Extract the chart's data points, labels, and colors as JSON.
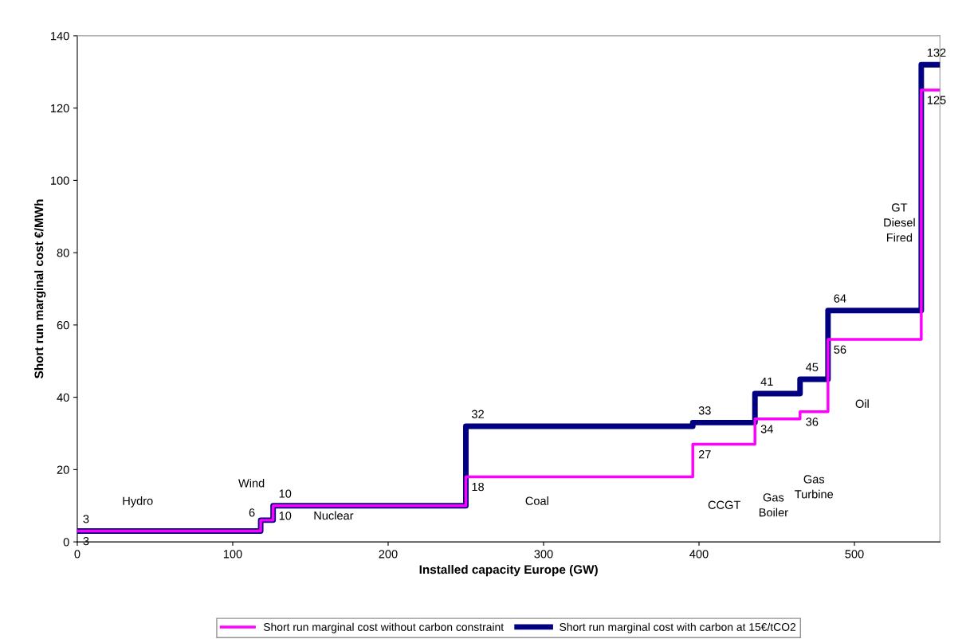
{
  "chart_data": {
    "type": "step",
    "xlabel": "Installed capacity Europe (GW)",
    "ylabel": "Short run marginal cost €/MWh",
    "x": [
      0,
      118,
      126,
      250,
      396,
      436,
      465,
      483,
      543,
      555
    ],
    "series": [
      {
        "name": "Short run marginal cost without carbon constraint",
        "color": "#ff00ff",
        "values": [
          3,
          6,
          10,
          18,
          27,
          34,
          36,
          56,
          125,
          125
        ],
        "value_labels": [
          "3",
          null,
          "10",
          "18",
          "27",
          "34",
          "36",
          "56",
          "125",
          null
        ]
      },
      {
        "name": "Short run marginal cost with carbon at 15€/tCO2",
        "color": "#000080",
        "values": [
          3,
          6,
          10,
          32,
          33,
          41,
          45,
          64,
          132,
          132
        ],
        "value_labels": [
          "3",
          "6",
          "10",
          "32",
          "33",
          "41",
          "45",
          "64",
          "132",
          null
        ]
      }
    ],
    "xlim": [
      0,
      555
    ],
    "xticks": [
      0,
      100,
      200,
      300,
      400,
      500
    ],
    "ylim": [
      0,
      140
    ],
    "yticks": [
      0,
      20,
      40,
      60,
      80,
      100,
      120,
      140
    ],
    "grid": false,
    "legend": "bottom",
    "annotations": [
      "Hydro",
      "Wind",
      "Nuclear",
      "Coal",
      "CCGT",
      "Gas\nBoiler",
      "Gas\nTurbine",
      "Oil",
      "GT\nDiesel\nFired"
    ]
  }
}
